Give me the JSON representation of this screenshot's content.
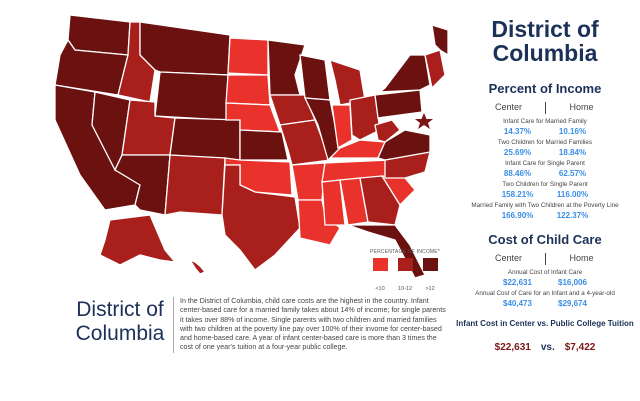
{
  "colors": {
    "low": "#e8322b",
    "mid": "#a81f1c",
    "high": "#6b1210",
    "title": "#1b3157",
    "value": "#3a8ee6"
  },
  "legend": {
    "title": "PERCENTAGE OF INCOME*",
    "items": [
      "<10",
      "10-12",
      ">12"
    ]
  },
  "summary": {
    "title": "District of Columbia",
    "text": "In the District of Columbia, child care costs are the highest in the country. Infant center-based care for a married family takes about 14% of income; for single parents it takes over 88% of income. Single parents with two children and married families with two children at the poverty line pay over 100% of their invome for center-based and home-based care. A year of infant center-based care is more than 3 times the cost of one year's tuition at a four-year public college."
  },
  "side": {
    "title": "District of Columbia",
    "percent": {
      "heading": "Percent of Income",
      "center": "Center",
      "home": "Home",
      "rows": [
        {
          "label": "Infant Care for Married Family",
          "center": "14.37%",
          "home": "10.16%"
        },
        {
          "label": "Two Children for Married Families",
          "center": "25.69%",
          "home": "18.84%"
        },
        {
          "label": "Infant Care for Single Parent",
          "center": "88.46%",
          "home": "62.57%"
        },
        {
          "label": "Two Children for Single Parent",
          "center": "158.21%",
          "home": "116.00%"
        },
        {
          "label": "Married Family with Two Children at the Poverty Line",
          "center": "166.90%",
          "home": "122.37%"
        }
      ]
    },
    "cost": {
      "heading": "Cost of Child Care",
      "center": "Center",
      "home": "Home",
      "rows": [
        {
          "label": "Annual Cost of Infant Care",
          "center": "$22,631",
          "home": "$16,006"
        },
        {
          "label": "Annual Cost of Care for an Infant and a 4-year-old",
          "center": "$40,473",
          "home": "$29,674"
        }
      ]
    },
    "compare": {
      "heading": "Infant Cost in Center vs. Public College Tuition",
      "infant": "$22,631",
      "vs": "vs.",
      "tuition": "$7,422"
    }
  }
}
